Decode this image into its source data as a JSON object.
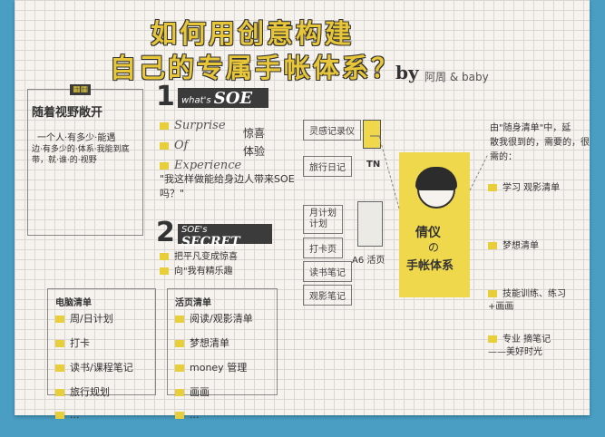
{
  "title": {
    "line1": "如何用创意构建",
    "line2": "自己的专属手帐体系？",
    "by": "by",
    "author": "阿周 & baby"
  },
  "follow_box": {
    "badge": "▦▦",
    "heading": "随着视野敞开",
    "lines": [
      "一个人·有多少·能遇",
      "边·有多少的·体系·我能到底",
      "带，就·谁·的·视野"
    ]
  },
  "section1": {
    "number": "1",
    "what": "what's",
    "name": "SOE",
    "items": [
      "Surprise",
      "Of",
      "Experience"
    ],
    "cn_notes": [
      "惊喜",
      "体验"
    ],
    "quote": "\"我这样做能给身边人带来SOE吗？\""
  },
  "section2": {
    "number": "2",
    "soe": "SOE's",
    "secret": "SECRET",
    "items": [
      "把平凡变成惊喜",
      "向\"我有精乐趣"
    ]
  },
  "flow": {
    "record": "灵感记录仪",
    "pocket": "",
    "notebook": "旅行日记",
    "tn": "TN",
    "plan": [
      "月计划",
      "计划"
    ],
    "quote_box": "打卡页",
    "reading": "读书笔记",
    "movie": "观影笔记",
    "a6": "A6 活页"
  },
  "card": {
    "name": "倩仪",
    "of": "の",
    "system": "手帐体系"
  },
  "bottom_left": {
    "heading": "电脑清单",
    "items": [
      "周/日计划",
      "打卡",
      "读书/课程笔记",
      "旅行规划",
      "..."
    ]
  },
  "bottom_mid": {
    "heading": "活页清单",
    "items": [
      "阅读/观影清单",
      "梦想清单",
      "money 管理",
      "画画",
      "..."
    ]
  },
  "right_col": {
    "intro": [
      "由\"随身清单\"中，延",
      "散我很到的，需要的，很",
      "需的："
    ],
    "items": [
      "学习 观影清单",
      "梦想清单",
      "技能训练、练习\n+画画",
      "专业 摘笔记\n——美好时光"
    ]
  },
  "colors": {
    "page": "#f6f3ee",
    "frame": "#4a9ec4",
    "accent": "#e8cf3a",
    "ink": "#333333"
  }
}
